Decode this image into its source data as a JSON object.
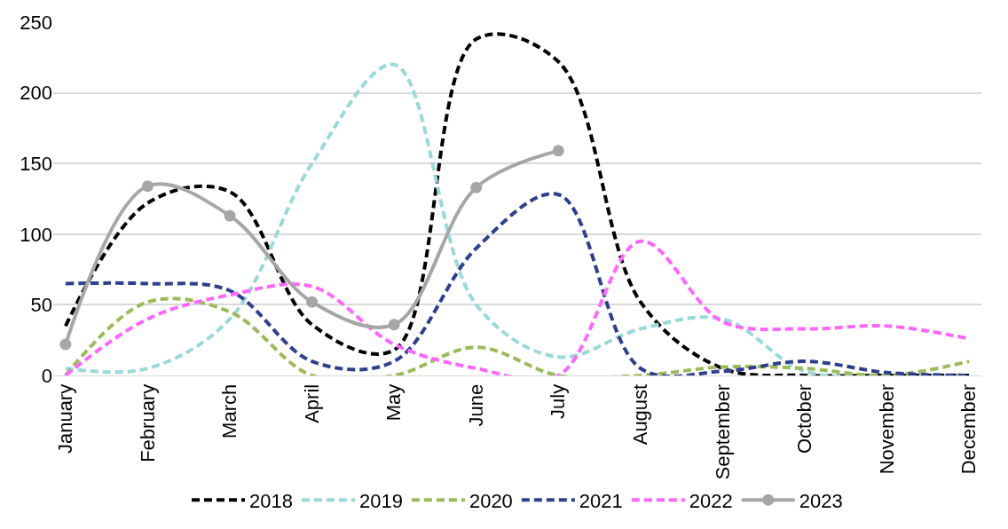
{
  "chart_data": {
    "type": "line",
    "categories": [
      "January",
      "February",
      "March",
      "April",
      "May",
      "June",
      "July",
      "August",
      "September",
      "October",
      "November",
      "December"
    ],
    "series": [
      {
        "name": "2018",
        "color": "#000000",
        "line_style": "dashed",
        "marker": "none",
        "values": [
          35,
          122,
          130,
          36,
          18,
          238,
          222,
          52,
          5,
          0,
          0,
          0
        ]
      },
      {
        "name": "2019",
        "color": "#99d9d9",
        "line_style": "dashed",
        "marker": "none",
        "values": [
          5,
          5,
          40,
          150,
          220,
          50,
          13,
          33,
          40,
          3,
          0,
          0
        ]
      },
      {
        "name": "2020",
        "color": "#9bbb59",
        "line_style": "dashed",
        "marker": "none",
        "values": [
          0,
          52,
          45,
          0,
          0,
          20,
          0,
          0,
          6,
          5,
          0,
          10
        ]
      },
      {
        "name": "2021",
        "color": "#2e3f8f",
        "line_style": "dashed",
        "marker": "none",
        "values": [
          65,
          65,
          60,
          10,
          10,
          90,
          128,
          5,
          3,
          10,
          2,
          0
        ]
      },
      {
        "name": "2022",
        "color": "#ff66ff",
        "line_style": "dashed",
        "marker": "none",
        "values": [
          0,
          40,
          57,
          63,
          22,
          5,
          0,
          95,
          38,
          33,
          35,
          26
        ]
      },
      {
        "name": "2023",
        "color": "#a6a6a6",
        "line_style": "solid",
        "marker": "circle",
        "values": [
          22,
          134,
          113,
          52,
          36,
          133,
          159,
          null,
          null,
          null,
          null,
          null
        ]
      }
    ],
    "ylim": [
      0,
      250
    ],
    "yticks": [
      0,
      50,
      100,
      150,
      200,
      250
    ],
    "grid": "y",
    "legend": "bottom"
  }
}
